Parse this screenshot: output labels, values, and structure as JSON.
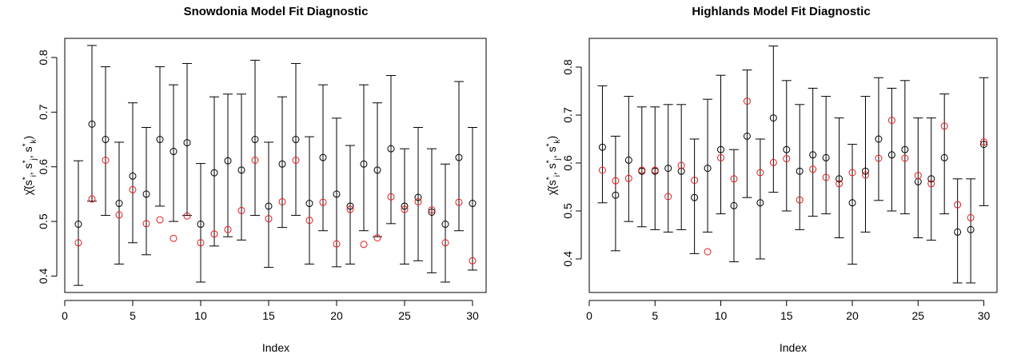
{
  "chart_data": [
    {
      "type": "scatter",
      "title": "Snowdonia Model Fit Diagnostic",
      "xlabel": "Index",
      "ylabel": "χ̂(s*i, s*j, s*k)",
      "xlim": [
        0,
        31
      ],
      "ylim": [
        0.37,
        0.835
      ],
      "xticks": [
        0,
        5,
        10,
        15,
        20,
        25,
        30
      ],
      "yticks": [
        0.4,
        0.5,
        0.6,
        0.7,
        0.8
      ],
      "grid": false,
      "legend": "none",
      "colors": {
        "empirical": "#000000",
        "model": "#e41a1c"
      },
      "x": [
        1,
        2,
        3,
        4,
        5,
        6,
        7,
        8,
        9,
        10,
        11,
        12,
        13,
        14,
        15,
        16,
        17,
        18,
        19,
        20,
        21,
        22,
        23,
        24,
        25,
        26,
        27,
        28,
        29,
        30
      ],
      "series": [
        {
          "values": [
            0.495,
            0.678,
            0.65,
            0.533,
            0.583,
            0.55,
            0.65,
            0.628,
            0.644,
            0.495,
            0.589,
            0.611,
            0.594,
            0.65,
            0.528,
            0.605,
            0.65,
            0.533,
            0.617,
            0.55,
            0.528,
            0.605,
            0.594,
            0.633,
            0.528,
            0.544,
            0.517,
            0.495,
            0.617,
            0.533
          ]
        },
        {
          "values": [
            0.461,
            0.541,
            0.612,
            0.512,
            0.558,
            0.496,
            0.503,
            0.469,
            0.51,
            0.461,
            0.477,
            0.485,
            0.52,
            0.612,
            0.505,
            0.536,
            0.612,
            0.502,
            0.535,
            0.459,
            0.522,
            0.458,
            0.47,
            0.545,
            0.522,
            0.536,
            0.521,
            0.461,
            0.535,
            0.428
          ]
        }
      ],
      "intervals": {
        "lower": [
          0.383,
          0.537,
          0.511,
          0.422,
          0.461,
          0.439,
          0.528,
          0.5,
          0.511,
          0.389,
          0.455,
          0.472,
          0.466,
          0.511,
          0.416,
          0.489,
          0.511,
          0.422,
          0.483,
          0.417,
          0.422,
          0.483,
          0.472,
          0.496,
          0.422,
          0.428,
          0.406,
          0.389,
          0.483,
          0.411
        ],
        "upper": [
          0.611,
          0.822,
          0.783,
          0.645,
          0.717,
          0.672,
          0.783,
          0.75,
          0.789,
          0.606,
          0.728,
          0.733,
          0.733,
          0.795,
          0.645,
          0.728,
          0.789,
          0.655,
          0.75,
          0.689,
          0.639,
          0.75,
          0.717,
          0.767,
          0.633,
          0.672,
          0.633,
          0.605,
          0.756,
          0.672
        ]
      }
    },
    {
      "type": "scatter",
      "title": "Highlands Model Fit Diagnostic",
      "xlabel": "Index",
      "ylabel": "χ̂(s*i, s*j, s*k)",
      "xlim": [
        0,
        31
      ],
      "ylim": [
        0.33,
        0.86
      ],
      "xticks": [
        0,
        5,
        10,
        15,
        20,
        25,
        30
      ],
      "yticks": [
        0.4,
        0.5,
        0.6,
        0.7,
        0.8
      ],
      "grid": false,
      "legend": "none",
      "colors": {
        "empirical": "#000000",
        "model": "#e41a1c"
      },
      "x": [
        1,
        2,
        3,
        4,
        5,
        6,
        7,
        8,
        9,
        10,
        11,
        12,
        13,
        14,
        15,
        16,
        17,
        18,
        19,
        20,
        21,
        22,
        23,
        24,
        25,
        26,
        27,
        28,
        29,
        30
      ],
      "series": [
        {
          "values": [
            0.633,
            0.533,
            0.606,
            0.583,
            0.583,
            0.589,
            0.583,
            0.528,
            0.589,
            0.628,
            0.511,
            0.656,
            0.517,
            0.694,
            0.628,
            0.583,
            0.617,
            0.611,
            0.567,
            0.517,
            0.583,
            0.65,
            0.617,
            0.628,
            0.561,
            0.567,
            0.611,
            0.456,
            0.461,
            0.639
          ]
        },
        {
          "values": [
            0.585,
            0.563,
            0.568,
            0.585,
            0.585,
            0.53,
            0.595,
            0.564,
            0.415,
            0.611,
            0.567,
            0.729,
            0.58,
            0.601,
            0.609,
            0.523,
            0.587,
            0.57,
            0.557,
            0.58,
            0.575,
            0.61,
            0.689,
            0.61,
            0.574,
            0.557,
            0.677,
            0.513,
            0.486,
            0.644
          ]
        }
      ],
      "intervals": {
        "lower": [
          0.517,
          0.417,
          0.478,
          0.467,
          0.461,
          0.456,
          0.461,
          0.411,
          0.456,
          0.494,
          0.394,
          0.528,
          0.4,
          0.539,
          0.5,
          0.461,
          0.489,
          0.494,
          0.444,
          0.389,
          0.456,
          0.522,
          0.5,
          0.494,
          0.444,
          0.439,
          0.494,
          0.35,
          0.35,
          0.511
        ],
        "upper": [
          0.761,
          0.656,
          0.739,
          0.717,
          0.717,
          0.722,
          0.722,
          0.65,
          0.733,
          0.783,
          0.628,
          0.794,
          0.65,
          0.844,
          0.772,
          0.722,
          0.756,
          0.739,
          0.694,
          0.639,
          0.739,
          0.778,
          0.756,
          0.772,
          0.694,
          0.694,
          0.744,
          0.567,
          0.567,
          0.778
        ]
      }
    }
  ]
}
